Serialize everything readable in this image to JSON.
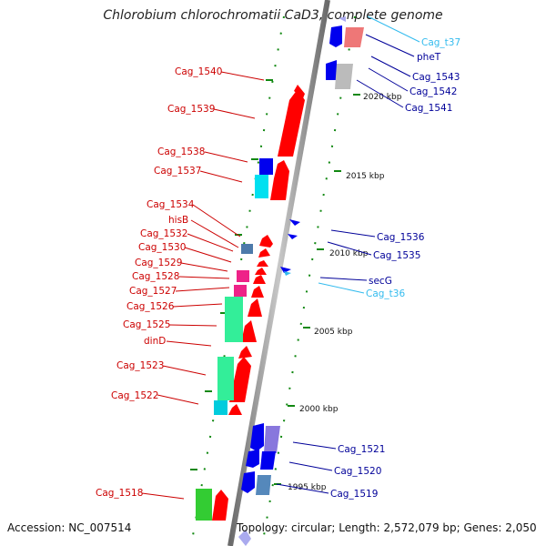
{
  "title": "Chlorobium chlorochromatii CaD3, complete genome",
  "accession": "Accession: NC_007514",
  "topology": "Topology: circular; Length: 2,572,079 bp; Genes: 2,050",
  "scale_labels": [
    "2020 kbp",
    "2015 kbp",
    "2010 kbp",
    "2005 kbp",
    "2000 kbp",
    "1995 kbp"
  ],
  "left_genes": [
    "Cag_1540",
    "Cag_1539",
    "Cag_1538",
    "Cag_1537",
    "Cag_1534",
    "hisB",
    "Cag_1532",
    "Cag_1530",
    "Cag_1529",
    "Cag_1528",
    "Cag_1527",
    "Cag_1526",
    "Cag_1525",
    "dinD",
    "Cag_1523",
    "Cag_1522",
    "Cag_1518"
  ],
  "right_genes": [
    "Cag_t37",
    "pheT",
    "Cag_1543",
    "Cag_1542",
    "Cag_1541",
    "Cag_1536",
    "Cag_1535",
    "secG",
    "Cag_t36",
    "Cag_1521",
    "Cag_1520",
    "Cag_1519"
  ],
  "colors": {
    "forward": "#ff0000",
    "reverse": "#0000ee",
    "trna": "#33bbee",
    "text_red": "#cc0000",
    "text_blue": "#000099",
    "axis": "#888888",
    "ticks": "#118811"
  }
}
